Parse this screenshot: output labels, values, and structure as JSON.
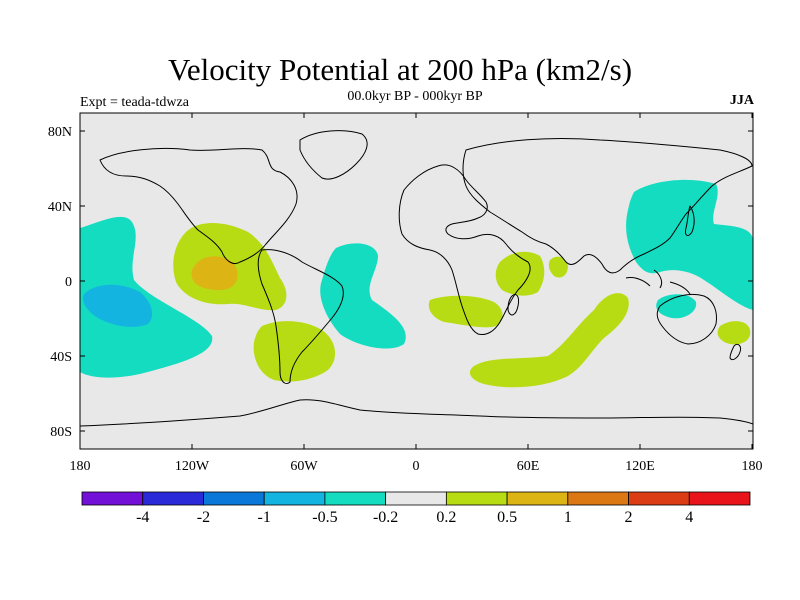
{
  "title": "Velocity Potential at 200 hPa (km2/s)",
  "subtitle": "00.0kyr BP - 000kyr BP",
  "experiment": "Expt = teada-tdwza",
  "season": "JJA",
  "map": {
    "background_color": "#e8e8e8",
    "lat_ticks": [
      "80N",
      "40N",
      "0",
      "40S",
      "80S"
    ],
    "lon_ticks": [
      "180",
      "120W",
      "60W",
      "0",
      "60E",
      "120E",
      "180"
    ]
  },
  "colorbar": {
    "colors": [
      "#7310d8",
      "#2a2ad8",
      "#0a78d8",
      "#14b4e0",
      "#14dcc0",
      "#e8e8e8",
      "#b8dc14",
      "#dcb414",
      "#dc7814",
      "#dc3c14",
      "#e8141a"
    ],
    "labels": [
      "-4",
      "-2",
      "-1",
      "-0.5",
      "-0.2",
      "0.2",
      "0.5",
      "1",
      "2",
      "4"
    ]
  }
}
